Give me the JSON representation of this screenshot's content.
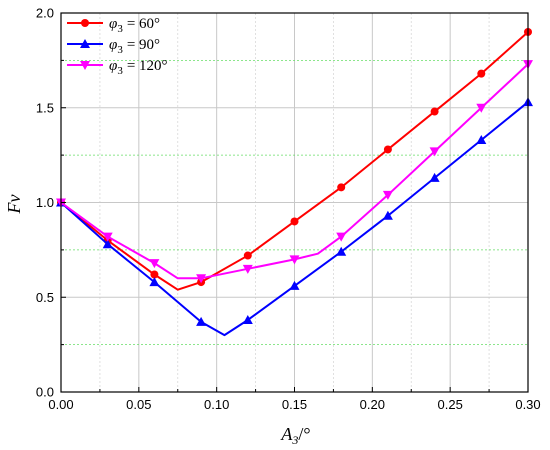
{
  "chart_data": {
    "type": "line",
    "xlabel": "A",
    "xlabel_sub": "3",
    "xlabel_unit": "/°",
    "ylabel": "Fv",
    "xlim": [
      0.0,
      0.3
    ],
    "ylim": [
      0.0,
      2.0
    ],
    "x_ticks": [
      "0.00",
      "0.05",
      "0.10",
      "0.15",
      "0.20",
      "0.25",
      "0.30"
    ],
    "y_ticks": [
      "0.0",
      "0.5",
      "1.0",
      "1.5",
      "2.0"
    ],
    "grid": true,
    "legend_position": "top-left",
    "series": [
      {
        "name": "φ3 = 60°",
        "legend_symbol": "φ",
        "legend_sub": "3",
        "legend_value": "=  60°",
        "color": "#ff0000",
        "marker": "circle",
        "line_x": [
          0.0,
          0.03,
          0.06,
          0.075,
          0.09,
          0.12,
          0.15,
          0.18,
          0.21,
          0.24,
          0.27,
          0.3
        ],
        "line_y": [
          1.0,
          0.8,
          0.62,
          0.54,
          0.58,
          0.72,
          0.9,
          1.08,
          1.28,
          1.48,
          1.68,
          1.9
        ],
        "marker_x": [
          0.0,
          0.03,
          0.06,
          0.09,
          0.12,
          0.15,
          0.18,
          0.21,
          0.24,
          0.27,
          0.3
        ],
        "marker_y": [
          1.0,
          0.8,
          0.62,
          0.58,
          0.72,
          0.9,
          1.08,
          1.28,
          1.48,
          1.68,
          1.9
        ]
      },
      {
        "name": "φ3 = 90°",
        "legend_symbol": "φ",
        "legend_sub": "3",
        "legend_value": "=  90°",
        "color": "#0000ff",
        "marker": "triangle-up",
        "line_x": [
          0.0,
          0.03,
          0.06,
          0.09,
          0.105,
          0.12,
          0.15,
          0.18,
          0.21,
          0.24,
          0.27,
          0.3
        ],
        "line_y": [
          1.0,
          0.78,
          0.58,
          0.37,
          0.3,
          0.38,
          0.56,
          0.74,
          0.93,
          1.13,
          1.33,
          1.53
        ],
        "marker_x": [
          0.0,
          0.03,
          0.06,
          0.09,
          0.12,
          0.15,
          0.18,
          0.21,
          0.24,
          0.27,
          0.3
        ],
        "marker_y": [
          1.0,
          0.78,
          0.58,
          0.37,
          0.38,
          0.56,
          0.74,
          0.93,
          1.13,
          1.33,
          1.53
        ]
      },
      {
        "name": "φ3 = 120°",
        "legend_symbol": "φ",
        "legend_sub": "3",
        "legend_value": "=  120°",
        "color": "#ff00ff",
        "marker": "triangle-down",
        "line_x": [
          0.0,
          0.03,
          0.06,
          0.075,
          0.09,
          0.12,
          0.15,
          0.165,
          0.18,
          0.21,
          0.24,
          0.27,
          0.3
        ],
        "line_y": [
          1.0,
          0.82,
          0.68,
          0.6,
          0.6,
          0.65,
          0.7,
          0.73,
          0.82,
          1.04,
          1.27,
          1.5,
          1.73
        ],
        "marker_x": [
          0.0,
          0.03,
          0.06,
          0.09,
          0.12,
          0.15,
          0.18,
          0.21,
          0.24,
          0.27,
          0.3
        ],
        "marker_y": [
          1.0,
          0.82,
          0.68,
          0.6,
          0.65,
          0.7,
          0.82,
          1.04,
          1.27,
          1.5,
          1.73
        ]
      }
    ]
  }
}
